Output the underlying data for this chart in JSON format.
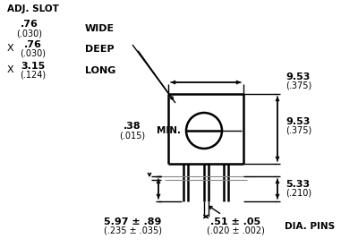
{
  "background_color": "#ffffff",
  "line_color": "#000000",
  "gray_color": "#888888",
  "text_color": "#000000",
  "adj_slot_label": "ADJ. SLOT",
  "wide_label": "WIDE",
  "deep_label": "DEEP",
  "long_label": "LONG",
  "min_label": "MIN.",
  "dia_pins_label": "DIA. PINS",
  "dim1_top": ".76",
  "dim1_bot": "(.030)",
  "dim2_top": ".76",
  "dim2_bot": "(.030)",
  "dim3_top": "3.15",
  "dim3_bot": "(.124)",
  "dim4_top": ".38",
  "dim4_bot": "(.015)",
  "dim5_top": "9.53",
  "dim5_bot": "(.375)",
  "dim6_top": "9.53",
  "dim6_bot": "(.375)",
  "dim7_top": "5.33",
  "dim7_bot": "(.210)",
  "dim8_top": "5.97 ± .89",
  "dim8_bot": "(.235 ± .035)",
  "dim9_top": ".51 ± .05",
  "dim9_bot": "(.020 ± .002)",
  "figsize": [
    4.0,
    2.76
  ],
  "dpi": 100
}
